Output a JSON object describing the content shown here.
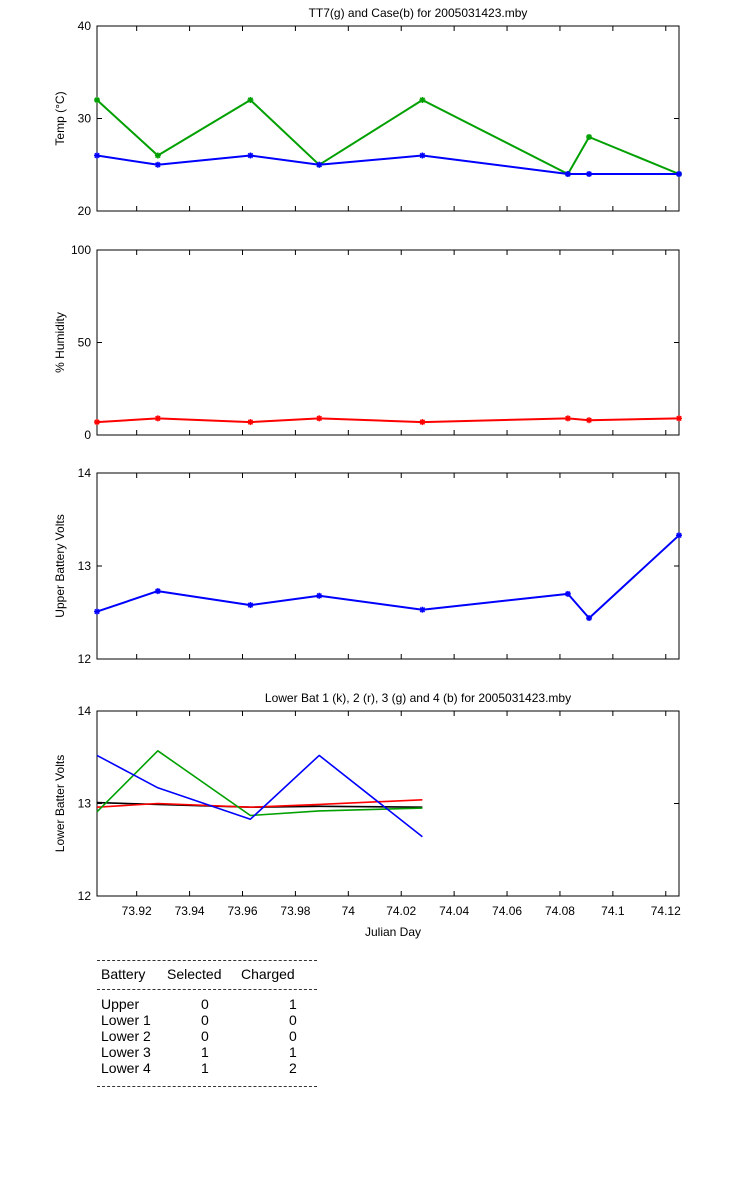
{
  "chart_data": [
    {
      "type": "line",
      "title": "TT7(g) and Case(b) for 2005031423.mby",
      "xlabel": "",
      "ylabel": "Temp  (°C)",
      "xlim": [
        73.905,
        74.125
      ],
      "ylim": [
        20,
        40
      ],
      "yticks": [
        20,
        30,
        40
      ],
      "grid": false,
      "series": [
        {
          "color": "#00a000",
          "marker": "*",
          "x": [
            73.905,
            73.928,
            73.963,
            73.989,
            74.028,
            74.083,
            74.091,
            74.125
          ],
          "y": [
            32,
            26,
            32,
            25,
            32,
            24,
            28,
            24
          ]
        },
        {
          "color": "#0000ff",
          "marker": "*",
          "x": [
            73.905,
            73.928,
            73.963,
            73.989,
            74.028,
            74.083,
            74.091,
            74.125
          ],
          "y": [
            26,
            25,
            26,
            25,
            26,
            24,
            24,
            24
          ]
        }
      ]
    },
    {
      "type": "line",
      "title": "",
      "xlabel": "",
      "ylabel": "% Humidity",
      "xlim": [
        73.905,
        74.125
      ],
      "ylim": [
        0,
        100
      ],
      "yticks": [
        0,
        50,
        100
      ],
      "grid": false,
      "series": [
        {
          "color": "#ff0000",
          "marker": "*",
          "x": [
            73.905,
            73.928,
            73.963,
            73.989,
            74.028,
            74.083,
            74.091,
            74.125
          ],
          "y": [
            7,
            9,
            7,
            9,
            7,
            9,
            8,
            9
          ]
        }
      ]
    },
    {
      "type": "line",
      "title": "",
      "xlabel": "",
      "ylabel": "Upper Battery Volts",
      "xlim": [
        73.905,
        74.125
      ],
      "ylim": [
        12,
        14
      ],
      "yticks": [
        12,
        13,
        14
      ],
      "grid": false,
      "series": [
        {
          "color": "#0000ff",
          "marker": "*",
          "x": [
            73.905,
            73.928,
            73.963,
            73.989,
            74.028,
            74.083,
            74.091,
            74.125
          ],
          "y": [
            12.51,
            12.73,
            12.58,
            12.68,
            12.53,
            12.7,
            12.44,
            13.33
          ]
        }
      ]
    },
    {
      "type": "line",
      "title": "Lower Bat 1 (k), 2 (r), 3 (g) and 4 (b) for 2005031423.mby",
      "xlabel": "Julian Day",
      "ylabel": "Lower Batter Volts",
      "xlim": [
        73.905,
        74.125
      ],
      "ylim": [
        12,
        14
      ],
      "yticks": [
        12,
        13,
        14
      ],
      "xticks": [
        73.92,
        73.94,
        73.96,
        73.98,
        74,
        74.02,
        74.04,
        74.06,
        74.08,
        74.1,
        74.12
      ],
      "xtick_labels": [
        "73.92",
        "73.94",
        "73.96",
        "73.98",
        "74",
        "74.02",
        "74.04",
        "74.06",
        "74.08",
        "74.1",
        "74.12"
      ],
      "grid": false,
      "series": [
        {
          "color": "#000000",
          "marker": "",
          "x": [
            73.905,
            73.928,
            73.963,
            73.989,
            74.028
          ],
          "y": [
            13.01,
            12.99,
            12.96,
            12.97,
            12.96
          ]
        },
        {
          "color": "#ff0000",
          "marker": "",
          "x": [
            73.905,
            73.928,
            73.963,
            73.989,
            74.028
          ],
          "y": [
            12.96,
            13.0,
            12.96,
            12.99,
            13.04
          ]
        },
        {
          "color": "#00a000",
          "marker": "",
          "x": [
            73.905,
            73.928,
            73.963,
            73.989,
            74.028
          ],
          "y": [
            12.91,
            13.57,
            12.87,
            12.92,
            12.95
          ]
        },
        {
          "color": "#0000ff",
          "marker": "",
          "x": [
            73.905,
            73.928,
            73.963,
            73.989,
            74.028
          ],
          "y": [
            13.52,
            13.17,
            12.83,
            13.52,
            12.64
          ]
        }
      ]
    }
  ],
  "battery_table": {
    "headers": [
      "Battery",
      "Selected",
      "Charged"
    ],
    "rows": [
      [
        "Upper",
        "0",
        "1"
      ],
      [
        "Lower 1",
        "0",
        "0"
      ],
      [
        "Lower 2",
        "0",
        "0"
      ],
      [
        "Lower 3",
        "1",
        "1"
      ],
      [
        "Lower 4",
        "1",
        "2"
      ]
    ]
  }
}
